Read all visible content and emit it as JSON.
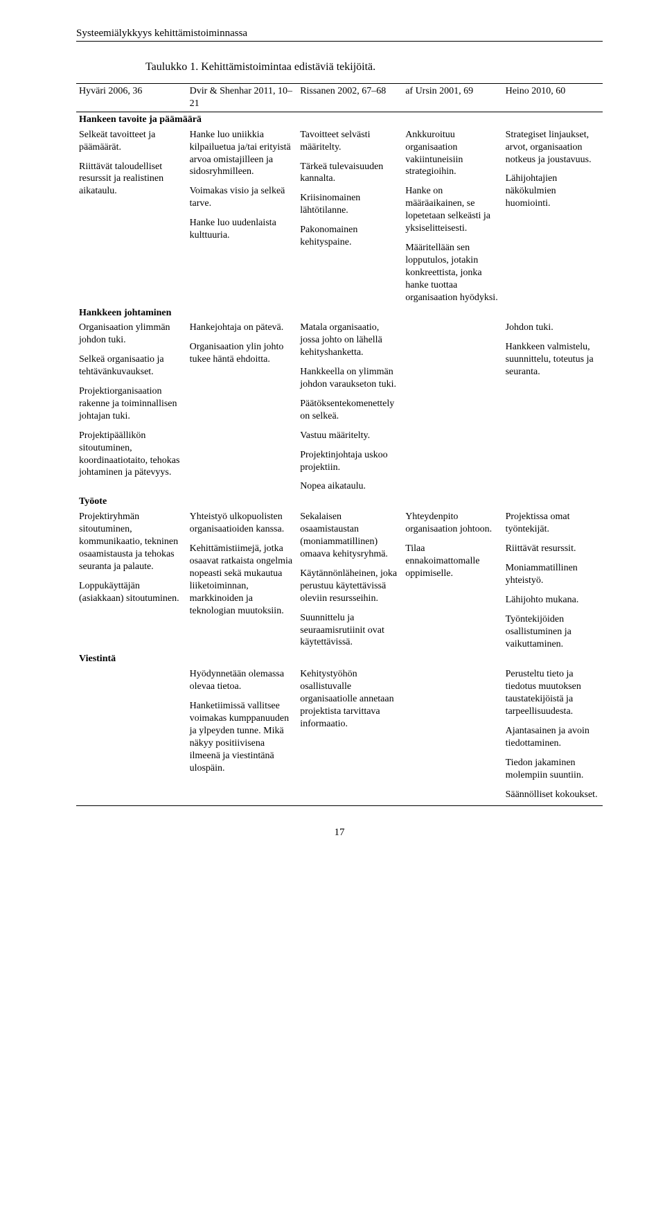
{
  "running_head": "Systeemiälykkyys kehittämistoiminnassa",
  "caption": "Taulukko 1.    Kehittämistoimintaa edistäviä tekijöitä.",
  "headers": {
    "c1": "Hyväri 2006, 36",
    "c2": "Dvir & Shenhar 2011, 10–21",
    "c3": "Rissanen 2002, 67–68",
    "c4": "af Ursin 2001, 69",
    "c5": "Heino 2010, 60"
  },
  "sections": {
    "s1_label": "Hankeen tavoite ja päämäärä",
    "s2_label": "Hankkeen johtaminen",
    "s3_label": "Työote",
    "s4_label": "Viestintä"
  },
  "s1": {
    "c1a": "Selkeät tavoitteet ja päämäärät.",
    "c1b": "Riittävät taloudelliset resurssit ja realistinen aikataulu.",
    "c2a": "Hanke luo uniikkia kilpailuetua ja/tai erityistä arvoa omistajilleen ja sidosryhmilleen.",
    "c2b": "Voimakas visio ja selkeä tarve.",
    "c2c": "Hanke luo uudenlaista kulttuuria.",
    "c3a": "Tavoitteet selvästi määritelty.",
    "c3b": "Tärkeä tulevaisuuden kannalta.",
    "c3c": "Kriisinomainen lähtötilanne.",
    "c3d": "Pakonomainen kehityspaine.",
    "c4a": "Ankkuroituu organisaation vakiintuneisiin strategioihin.",
    "c4b": "Hanke on määräaikainen, se lopetetaan selkeästi ja yksiselitteisesti.",
    "c4c": "Määritellään sen lopputulos, jotakin konkreettista, jonka hanke tuottaa organisaation hyödyksi.",
    "c5a": "Strategiset linjaukset, arvot, organisaation notkeus ja joustavuus.",
    "c5b": "Lähijohtajien näkökulmien huomiointi."
  },
  "s2": {
    "c1a": "Organisaation ylimmän johdon tuki.",
    "c1b": "Selkeä organisaatio ja tehtävänkuvaukset.",
    "c1c": "Projektiorganisaation rakenne ja toiminnallisen johtajan tuki.",
    "c1d": "Projektipäällikön sitoutuminen, koordinaatiotaito, tehokas johtaminen ja pätevyys.",
    "c2a": "Hankejohtaja on pätevä.",
    "c2b": "Organisaation ylin johto tukee häntä ehdoitta.",
    "c3a": "Matala organisaatio, jossa johto on lähellä kehityshanketta.",
    "c3b": "Hankkeella on ylimmän johdon varaukseton tuki.",
    "c3c": "Päätöksentekomenettely on selkeä.",
    "c3d": "Vastuu määritelty.",
    "c3e": "Projektinjohtaja uskoo projektiin.",
    "c3f": "Nopea aikataulu.",
    "c5a": "Johdon tuki.",
    "c5b": "Hankkeen valmistelu, suunnittelu, toteutus ja seuranta."
  },
  "s3": {
    "c1a": "Projektiryhmän sitoutuminen, kommunikaatio, tekninen osaamistausta ja tehokas seuranta ja palaute.",
    "c1b": "Loppukäyttäjän (asiakkaan) sitoutuminen.",
    "c2a": "Yhteistyö ulkopuolisten organisaatioiden kanssa.",
    "c2b": "Kehittämistiimejä, jotka osaavat ratkaista ongelmia nopeasti sekä mukautua liiketoiminnan, markkinoiden ja teknologian muutoksiin.",
    "c3a": "Sekalaisen osaamistaustan (moniammatillinen) omaava kehitysryhmä.",
    "c3b": "Käytännönläheinen, joka perustuu käytettävissä oleviin resursseihin.",
    "c3c": "Suunnittelu ja seuraamisrutiinit ovat käytettävissä.",
    "c4a": "Yhteydenpito organisaation johtoon.",
    "c4b": "Tilaa ennakoimattomalle oppimiselle.",
    "c5a": "Projektissa omat työntekijät.",
    "c5b": "Riittävät resurssit.",
    "c5c": "Moniammatillinen yhteistyö.",
    "c5d": "Lähijohto mukana.",
    "c5e": "Työntekijöiden osallistuminen ja vaikuttaminen."
  },
  "s4": {
    "c2a": "Hyödynnetään olemassa olevaa tietoa.",
    "c2b": "Hanketiimissä vallitsee voimakas kumppanuuden ja ylpeyden tunne. Mikä näkyy positiivisena ilmeenä ja viestintänä ulospäin.",
    "c3a": "Kehitystyöhön osallistuvalle organisaatiolle annetaan projektista tarvittava informaatio.",
    "c5a": "Perusteltu tieto ja tiedotus muutoksen taustatekijöistä ja tarpeellisuudesta.",
    "c5b": "Ajantasainen ja avoin tiedottaminen.",
    "c5c": "Tiedon jakaminen molempiin suuntiin.",
    "c5d": "Säännölliset kokoukset."
  },
  "page_number": "17"
}
